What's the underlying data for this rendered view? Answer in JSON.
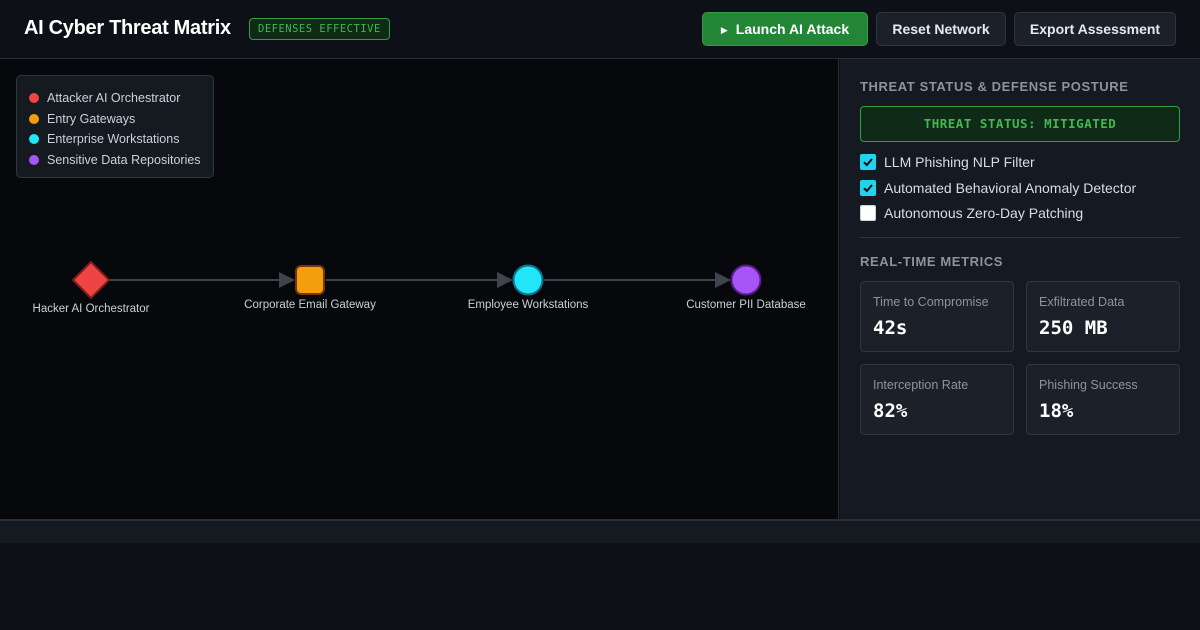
{
  "header": {
    "title": "AI Cyber Threat Matrix",
    "status_badge": "DEFENSES EFFECTIVE",
    "launch_label": "Launch AI Attack",
    "reset_label": "Reset Network",
    "export_label": "Export Assessment"
  },
  "legend": {
    "items": [
      {
        "label": "Attacker AI Orchestrator",
        "color": "#ef4444"
      },
      {
        "label": "Entry Gateways",
        "color": "#f59e0b"
      },
      {
        "label": "Enterprise Workstations",
        "color": "#22d3ee"
      },
      {
        "label": "Sensitive Data Repositories",
        "color": "#a855f7"
      }
    ]
  },
  "graph": {
    "nodes": [
      {
        "label": "Hacker AI Orchestrator",
        "shape": "diamond",
        "color": "#ef4444"
      },
      {
        "label": "Corporate Email Gateway",
        "shape": "rounded-square",
        "color": "#f59e0b"
      },
      {
        "label": "Employee Workstations",
        "shape": "circle",
        "color": "#22d3ee"
      },
      {
        "label": "Customer PII Database",
        "shape": "circle",
        "color": "#a855f7"
      }
    ]
  },
  "panel": {
    "posture_title": "THREAT STATUS & DEFENSE POSTURE",
    "threat_status": "THREAT STATUS: MITIGATED",
    "defenses": [
      {
        "label": "LLM Phishing NLP Filter",
        "checked": true
      },
      {
        "label": "Automated Behavioral Anomaly Detector",
        "checked": true
      },
      {
        "label": "Autonomous Zero-Day Patching",
        "checked": false
      }
    ],
    "metrics_title": "REAL-TIME METRICS",
    "metrics": [
      {
        "label": "Time to Compromise",
        "value": "42s"
      },
      {
        "label": "Exfiltrated Data",
        "value": "250 MB"
      },
      {
        "label": "Interception Rate",
        "value": "82%"
      },
      {
        "label": "Phishing Success",
        "value": "18%"
      }
    ]
  },
  "icons": {
    "play": "play-icon",
    "check": "check-icon"
  }
}
